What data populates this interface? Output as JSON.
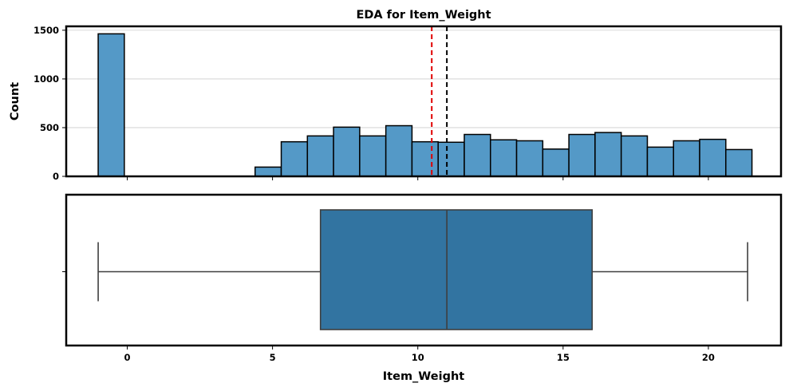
{
  "chart_data": [
    {
      "type": "histogram",
      "title": "EDA for Item_Weight",
      "xlabel": "",
      "ylabel": "Count",
      "xlim": [
        -2.1,
        22.5
      ],
      "ylim": [
        0,
        1540
      ],
      "yticks": [
        0,
        500,
        1000,
        1500
      ],
      "grid": "y",
      "bin_width": 0.9,
      "bins": [
        {
          "x0": -1.0,
          "count": 1463
        },
        {
          "x0": -0.1,
          "count": 0
        },
        {
          "x0": 0.8,
          "count": 0
        },
        {
          "x0": 1.7,
          "count": 0
        },
        {
          "x0": 2.6,
          "count": 0
        },
        {
          "x0": 3.5,
          "count": 0
        },
        {
          "x0": 4.4,
          "count": 95
        },
        {
          "x0": 5.3,
          "count": 355
        },
        {
          "x0": 6.2,
          "count": 415
        },
        {
          "x0": 7.1,
          "count": 505
        },
        {
          "x0": 8.0,
          "count": 415
        },
        {
          "x0": 8.9,
          "count": 520
        },
        {
          "x0": 9.8,
          "count": 355
        },
        {
          "x0": 10.7,
          "count": 350
        },
        {
          "x0": 11.6,
          "count": 430
        },
        {
          "x0": 12.5,
          "count": 375
        },
        {
          "x0": 13.4,
          "count": 365
        },
        {
          "x0": 14.3,
          "count": 280
        },
        {
          "x0": 15.2,
          "count": 430
        },
        {
          "x0": 16.1,
          "count": 450
        },
        {
          "x0": 17.0,
          "count": 415
        },
        {
          "x0": 17.9,
          "count": 300
        },
        {
          "x0": 18.8,
          "count": 365
        },
        {
          "x0": 19.7,
          "count": 380
        },
        {
          "x0": 20.6,
          "count": 275
        }
      ],
      "mean_line": {
        "value": 10.48,
        "color": "#e00000"
      },
      "median_line": {
        "value": 11.0,
        "color": "#000000"
      },
      "bar_color": "#5499c7"
    },
    {
      "type": "boxplot",
      "xlabel": "Item_Weight",
      "xlim": [
        -2.1,
        22.5
      ],
      "xticks": [
        0,
        5,
        10,
        15,
        20
      ],
      "whisker_low": -1.0,
      "q1": 6.65,
      "median": 11.0,
      "q3": 16.0,
      "whisker_high": 21.35,
      "box_color": "#3274a1"
    }
  ]
}
